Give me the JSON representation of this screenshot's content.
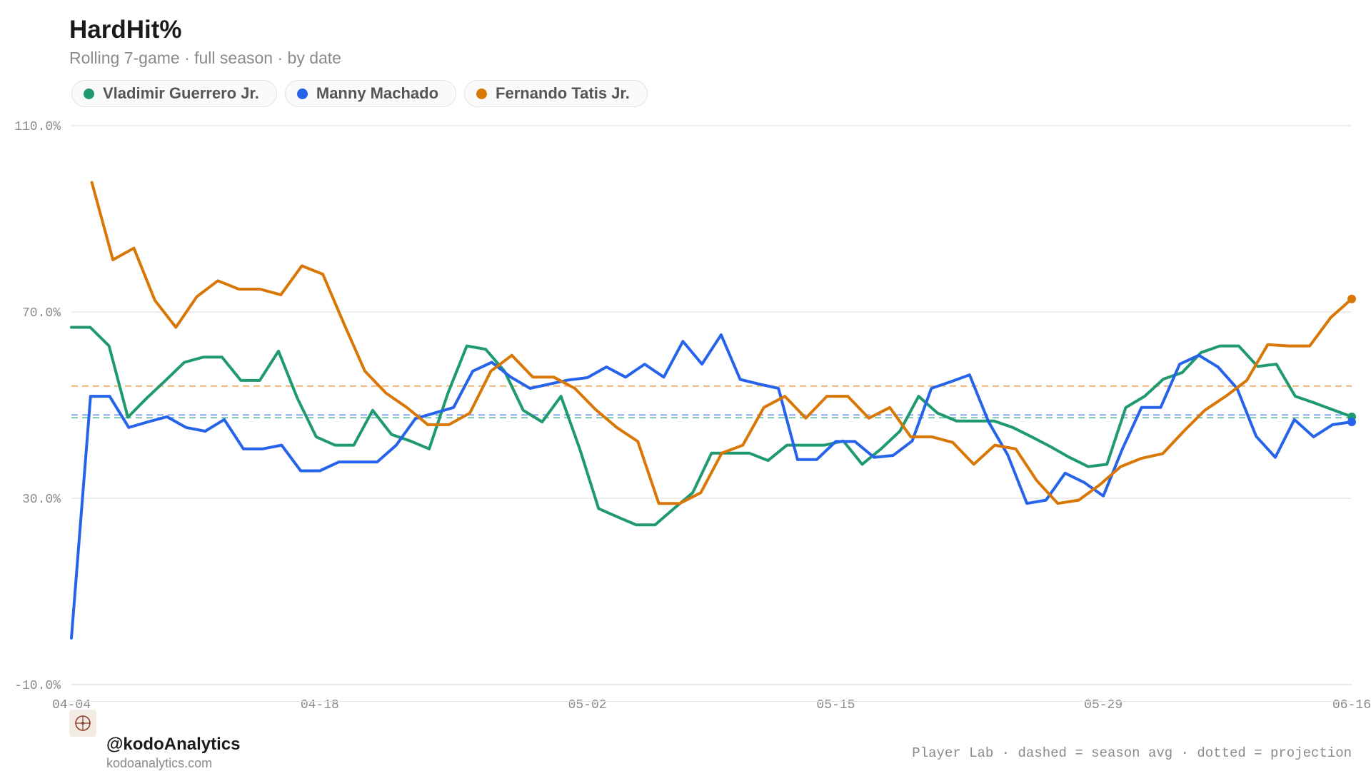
{
  "header": {
    "title": "HardHit%",
    "subtitle": "Rolling 7-game · full season · by date"
  },
  "legend": [
    {
      "label": "Vladimir Guerrero Jr.",
      "color": "#1f9a6e"
    },
    {
      "label": "Manny Machado",
      "color": "#2563eb"
    },
    {
      "label": "Fernando Tatis Jr.",
      "color": "#d97706"
    }
  ],
  "chart_data": {
    "type": "line",
    "ylim": [
      -10,
      110
    ],
    "y_ticks": [
      "110.0%",
      "70.0%",
      "30.0%",
      "-10.0%"
    ],
    "y_tick_values": [
      110,
      70,
      30,
      -10
    ],
    "x_ticks": [
      "04-04",
      "04-18",
      "05-02",
      "05-15",
      "05-29",
      "06-16"
    ],
    "grid": true,
    "series": [
      {
        "name": "Vladimir Guerrero Jr.",
        "color": "#1f9a6e",
        "season_avg": 47.3,
        "values": [
          66.7,
          66.7,
          62.7,
          47.4,
          51.5,
          55.3,
          59.2,
          60.3,
          60.3,
          55.3,
          55.3,
          61.6,
          51.5,
          43.2,
          41.4,
          41.4,
          48.9,
          43.7,
          42.3,
          40.6,
          52.6,
          62.7,
          62.0,
          57.3,
          48.9,
          46.4,
          51.9,
          40.6,
          27.8,
          26.0,
          24.3,
          24.3,
          27.8,
          31.2,
          39.7,
          39.7,
          39.7,
          38.1,
          41.4,
          41.4,
          41.4,
          42.3,
          37.3,
          40.6,
          44.4,
          51.9,
          48.3,
          46.6,
          46.6,
          46.6,
          45.2,
          43.2,
          41.1,
          38.8,
          36.8,
          37.3,
          49.5,
          51.9,
          55.6,
          57.0,
          61.3,
          62.7,
          62.7,
          58.3,
          58.8,
          51.9,
          50.5,
          49.0,
          47.5
        ]
      },
      {
        "name": "Manny Machado",
        "color": "#2563eb",
        "season_avg": 47.9,
        "values": [
          0,
          51.9,
          51.9,
          45.2,
          46.4,
          47.5,
          45.2,
          44.4,
          46.9,
          40.6,
          40.6,
          41.4,
          35.9,
          35.9,
          37.8,
          37.8,
          37.8,
          41.4,
          47.1,
          48.3,
          49.5,
          57.3,
          59.2,
          56.0,
          53.6,
          54.5,
          55.4,
          55.9,
          58.2,
          56.0,
          58.8,
          56.0,
          63.7,
          58.8,
          65.1,
          55.5,
          54.5,
          53.6,
          38.3,
          38.3,
          42.2,
          42.2,
          38.8,
          39.2,
          42.3,
          53.6,
          55.0,
          56.5,
          46.4,
          39.3,
          28.9,
          29.6,
          35.4,
          33.4,
          30.5,
          40.6,
          49.5,
          49.5,
          58.8,
          60.7,
          58.2,
          53.6,
          43.3,
          38.8,
          46.9,
          43.2,
          45.8,
          46.4
        ]
      },
      {
        "name": "Fernando Tatis Jr.",
        "color": "#d97706",
        "season_avg": 54.1,
        "values": [
          97.8,
          81.2,
          83.7,
          72.5,
          66.7,
          73.3,
          76.7,
          74.9,
          74.9,
          73.7,
          79.9,
          78.1,
          67.5,
          57.3,
          52.6,
          49.5,
          45.8,
          45.8,
          48.3,
          57.3,
          60.7,
          56.0,
          56.0,
          53.6,
          49.0,
          45.2,
          42.2,
          28.9,
          28.9,
          31.2,
          39.7,
          41.4,
          49.5,
          51.9,
          47.2,
          51.9,
          51.9,
          47.2,
          49.5,
          43.2,
          43.2,
          42.0,
          37.3,
          41.4,
          40.6,
          33.8,
          28.9,
          29.6,
          32.9,
          36.8,
          38.6,
          39.6,
          44.4,
          48.9,
          51.9,
          55.3,
          63.0,
          62.7,
          62.7,
          68.8,
          72.8
        ]
      }
    ]
  },
  "footer": {
    "handle": "@kodoAnalytics",
    "site": "kodoanalytics.com",
    "note": "Player Lab · dashed = season avg · dotted = projection"
  }
}
